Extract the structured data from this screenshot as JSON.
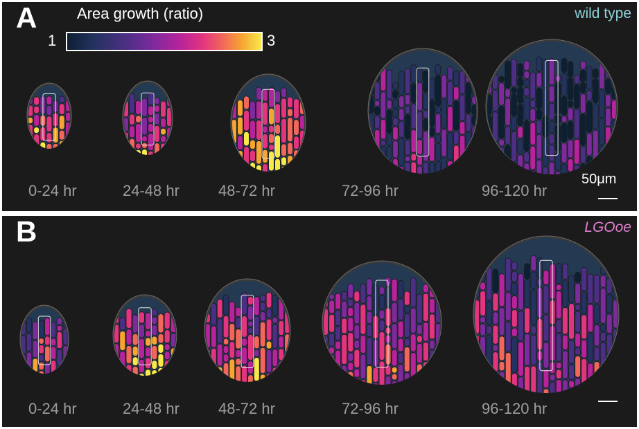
{
  "panels": [
    {
      "letter": "A",
      "genotype": "wild type",
      "colorbar": {
        "title": "Area growth (ratio)",
        "min": "1",
        "max": "3"
      },
      "scale_bar_label": "50μm",
      "time_labels": [
        "0-24 hr",
        "24-48 hr",
        "48-72 hr",
        "72-96 hr",
        "96-120 hr"
      ]
    },
    {
      "letter": "B",
      "genotype": "LGOoe",
      "time_labels": [
        "0-24 hr",
        "24-48 hr",
        "48-72 hr",
        "72-96 hr",
        "96-120 hr"
      ]
    }
  ],
  "colors": {
    "background": "#1b1b1b",
    "wild_type_label": "#8fd3da",
    "lgooe_label": "#e27fd3",
    "time_label": "#9d9d9d",
    "colormap": [
      "#0d1f33",
      "#243260",
      "#4b2f84",
      "#7d2a9c",
      "#b7239b",
      "#e3357f",
      "#f2675b",
      "#f7a532",
      "#f8e94a"
    ]
  },
  "specimen_growth_levels": {
    "wild_type": [
      0.75,
      0.7,
      0.8,
      0.3,
      0.2
    ],
    "lgooe": [
      0.55,
      0.72,
      0.65,
      0.5,
      0.45
    ]
  }
}
